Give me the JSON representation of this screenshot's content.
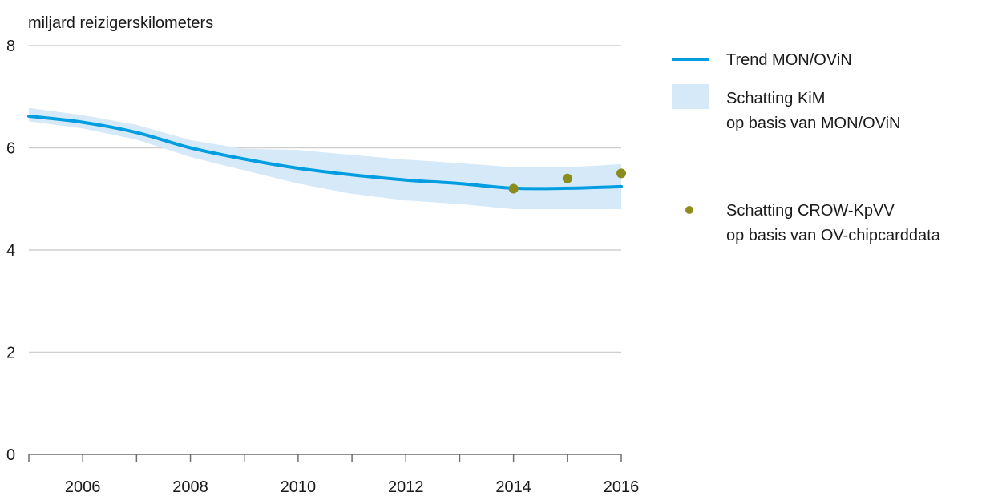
{
  "chart_data": {
    "type": "line",
    "ylabel": "miljard reizigerskilometers",
    "ylim": [
      0,
      8
    ],
    "yticks": [
      0,
      2,
      4,
      6,
      8
    ],
    "xlim": [
      2005,
      2016
    ],
    "xticks": [
      2006,
      2008,
      2010,
      2012,
      2014,
      2016
    ],
    "grid": true,
    "legend_position": "right",
    "series": [
      {
        "name": "Trend MON/OViN",
        "kind": "line",
        "color": "#009ee0",
        "x": [
          2005,
          2006,
          2007,
          2008,
          2009,
          2010,
          2011,
          2012,
          2013,
          2014,
          2015,
          2016
        ],
        "values": [
          6.62,
          6.5,
          6.3,
          6.0,
          5.78,
          5.6,
          5.47,
          5.37,
          5.3,
          5.21,
          5.21,
          5.24
        ]
      },
      {
        "name": "Schatting KiM op basis van MON/OViN",
        "kind": "band",
        "color": "#d6e9f8",
        "x": [
          2005,
          2006,
          2007,
          2008,
          2009,
          2010,
          2011,
          2012,
          2013,
          2014,
          2015,
          2016
        ],
        "lower": [
          6.52,
          6.38,
          6.16,
          5.82,
          5.56,
          5.3,
          5.1,
          4.97,
          4.9,
          4.8,
          4.8,
          4.8
        ],
        "upper": [
          6.78,
          6.64,
          6.45,
          6.15,
          5.98,
          5.96,
          5.86,
          5.77,
          5.7,
          5.62,
          5.62,
          5.68
        ]
      },
      {
        "name": "Schatting CROW-KpVV op basis van OV-chipcarddata",
        "kind": "scatter",
        "color": "#8c8c1e",
        "x": [
          2014,
          2015,
          2016
        ],
        "values": [
          5.2,
          5.4,
          5.5
        ]
      }
    ],
    "legend": [
      {
        "marker": "line",
        "lines": [
          "Trend MON/OViN"
        ]
      },
      {
        "marker": "band",
        "lines": [
          "Schatting KiM",
          "op basis van MON/OViN"
        ]
      },
      {
        "marker": "dot",
        "lines": [
          "Schatting CROW-KpVV",
          "op basis van OV-chipcarddata"
        ]
      }
    ]
  }
}
